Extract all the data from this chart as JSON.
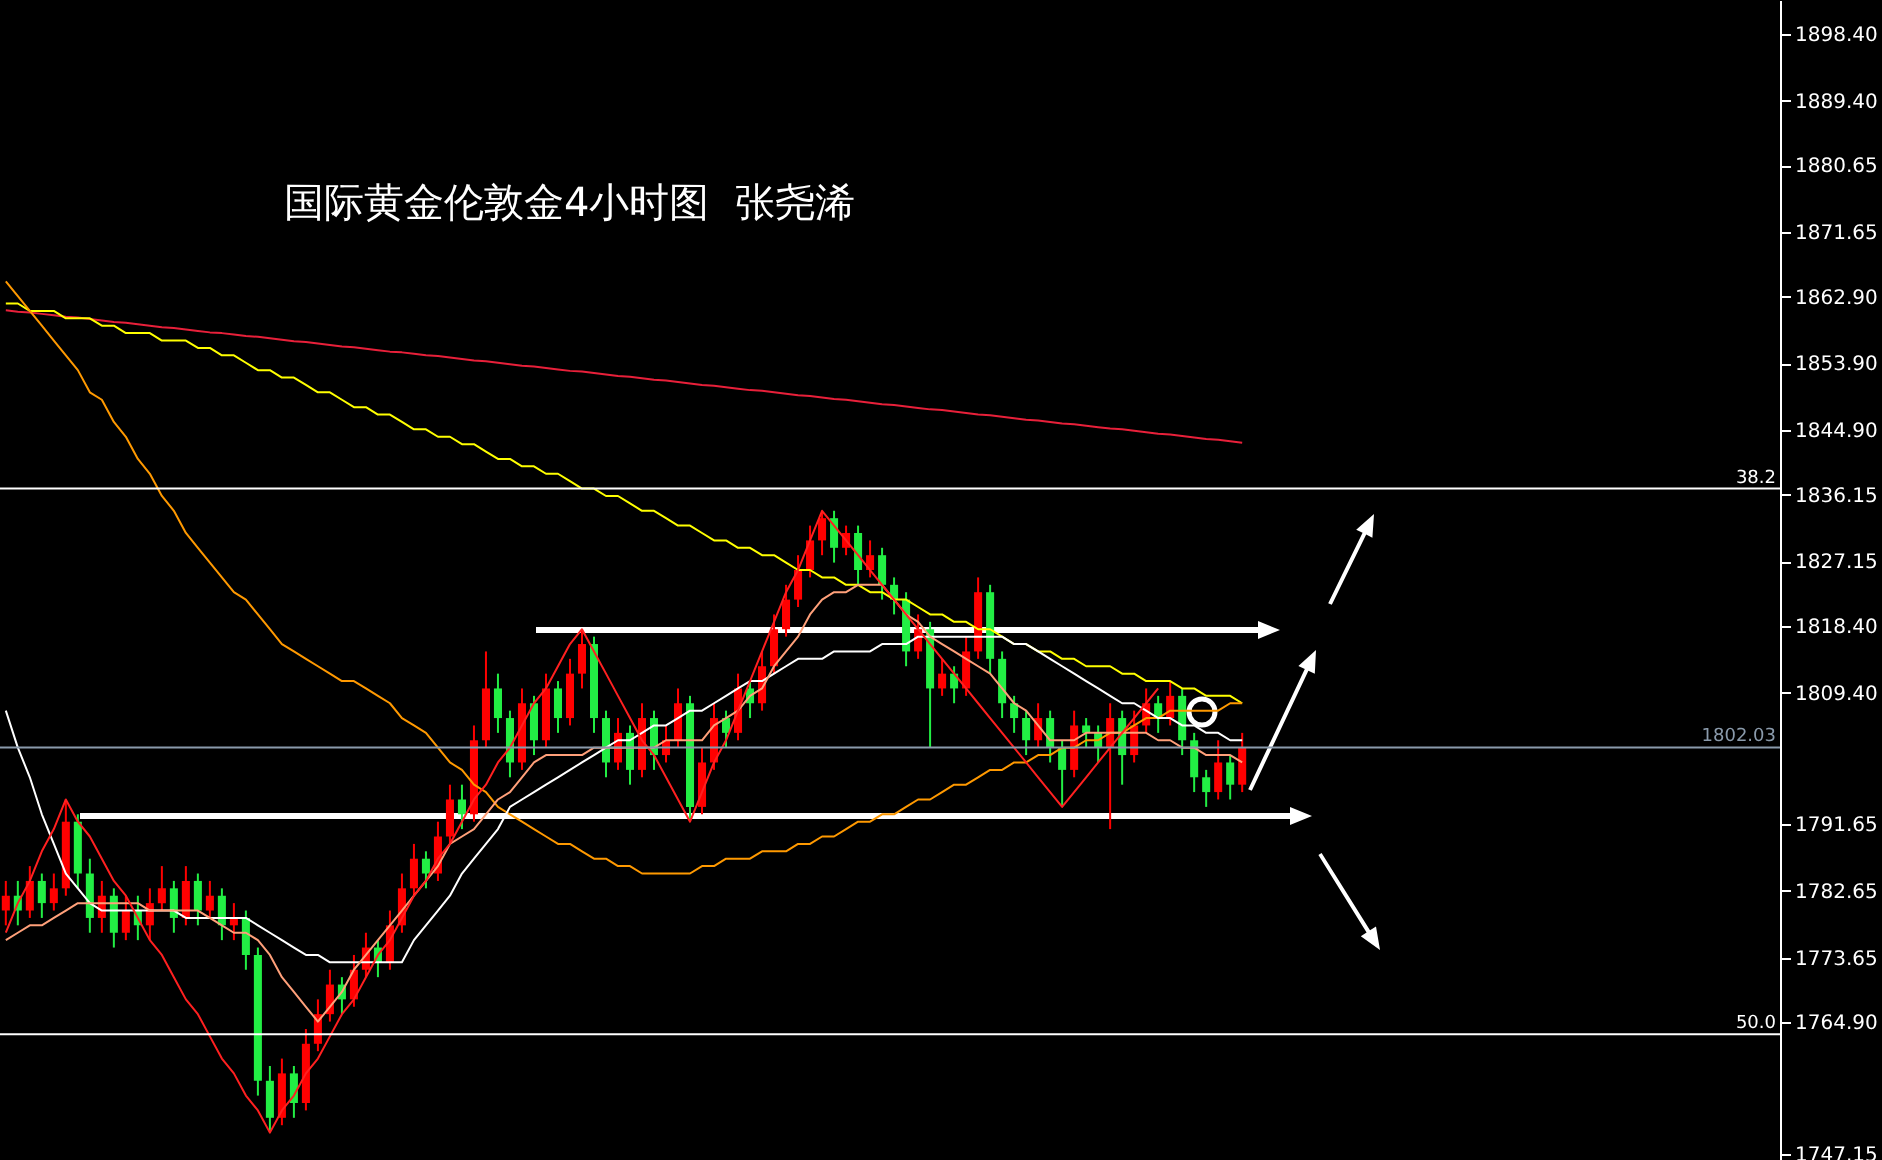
{
  "chart_data": {
    "type": "candlestick",
    "title": "国际黄金伦敦金4小时图  张尧浠",
    "categories": [
      null,
      null,
      null,
      null,
      null,
      null,
      null,
      null,
      null,
      null,
      null,
      null,
      null,
      null,
      null,
      null,
      null,
      null,
      null,
      null,
      null,
      null,
      null,
      null,
      null,
      null,
      null,
      null,
      null,
      null,
      null,
      null,
      null,
      null,
      null,
      null,
      null,
      null,
      null,
      null,
      null,
      null,
      null,
      null,
      null,
      null,
      null,
      null,
      null,
      null,
      null,
      null,
      null,
      null,
      null,
      null,
      null,
      null,
      null,
      null,
      null,
      null,
      null,
      null,
      null,
      null,
      null,
      null,
      null,
      null,
      null,
      null,
      null,
      null,
      null,
      null,
      null,
      null,
      null,
      null,
      null,
      null,
      null,
      null,
      null,
      null,
      null,
      null,
      null,
      null,
      null,
      null,
      null,
      null,
      null,
      null,
      null,
      null,
      null,
      null,
      null,
      null,
      null,
      null
    ],
    "ohlc": [
      [
        1780,
        1784,
        1778,
        1782
      ],
      [
        1782,
        1784,
        1778,
        1780
      ],
      [
        1780,
        1786,
        1779,
        1784
      ],
      [
        1784,
        1785,
        1779,
        1781
      ],
      [
        1781,
        1785,
        1780,
        1783
      ],
      [
        1783,
        1795,
        1782,
        1792
      ],
      [
        1792,
        1793,
        1783,
        1785
      ],
      [
        1785,
        1787,
        1777,
        1779
      ],
      [
        1779,
        1784,
        1777,
        1782
      ],
      [
        1782,
        1783,
        1775,
        1777
      ],
      [
        1777,
        1782,
        1776,
        1780
      ],
      [
        1780,
        1782,
        1776,
        1778
      ],
      [
        1778,
        1783,
        1776,
        1781
      ],
      [
        1781,
        1786,
        1780,
        1783
      ],
      [
        1783,
        1784,
        1777,
        1779
      ],
      [
        1779,
        1786,
        1778,
        1784
      ],
      [
        1784,
        1785,
        1778,
        1780
      ],
      [
        1780,
        1784,
        1779,
        1782
      ],
      [
        1782,
        1783,
        1776,
        1778
      ],
      [
        1778,
        1781,
        1776,
        1779
      ],
      [
        1779,
        1780,
        1772,
        1774
      ],
      [
        1774,
        1775,
        1755,
        1757
      ],
      [
        1757,
        1759,
        1750,
        1752
      ],
      [
        1752,
        1760,
        1751,
        1758
      ],
      [
        1758,
        1759,
        1752,
        1754
      ],
      [
        1754,
        1764,
        1753,
        1762
      ],
      [
        1762,
        1768,
        1761,
        1766
      ],
      [
        1766,
        1772,
        1765,
        1770
      ],
      [
        1770,
        1771,
        1766,
        1768
      ],
      [
        1768,
        1774,
        1767,
        1772
      ],
      [
        1772,
        1777,
        1771,
        1775
      ],
      [
        1775,
        1776,
        1771,
        1773
      ],
      [
        1773,
        1780,
        1772,
        1778
      ],
      [
        1778,
        1785,
        1777,
        1783
      ],
      [
        1783,
        1789,
        1782,
        1787
      ],
      [
        1787,
        1788,
        1783,
        1785
      ],
      [
        1785,
        1792,
        1784,
        1790
      ],
      [
        1790,
        1797,
        1789,
        1795
      ],
      [
        1795,
        1797,
        1791,
        1793
      ],
      [
        1793,
        1805,
        1792,
        1803
      ],
      [
        1803,
        1815,
        1802,
        1810
      ],
      [
        1810,
        1812,
        1804,
        1806
      ],
      [
        1806,
        1807,
        1798,
        1800
      ],
      [
        1800,
        1810,
        1799,
        1808
      ],
      [
        1808,
        1809,
        1801,
        1803
      ],
      [
        1803,
        1812,
        1802,
        1810
      ],
      [
        1810,
        1811,
        1804,
        1806
      ],
      [
        1806,
        1814,
        1805,
        1812
      ],
      [
        1812,
        1818,
        1810,
        1816
      ],
      [
        1816,
        1817,
        1804,
        1806
      ],
      [
        1806,
        1807,
        1798,
        1800
      ],
      [
        1800,
        1806,
        1799,
        1804
      ],
      [
        1804,
        1805,
        1797,
        1799
      ],
      [
        1799,
        1808,
        1798,
        1806
      ],
      [
        1806,
        1807,
        1799,
        1801
      ],
      [
        1801,
        1805,
        1800,
        1803
      ],
      [
        1803,
        1810,
        1802,
        1808
      ],
      [
        1808,
        1809,
        1792,
        1794
      ],
      [
        1794,
        1802,
        1793,
        1800
      ],
      [
        1800,
        1808,
        1799,
        1806
      ],
      [
        1806,
        1807,
        1802,
        1804
      ],
      [
        1804,
        1812,
        1803,
        1810
      ],
      [
        1810,
        1811,
        1806,
        1808
      ],
      [
        1808,
        1815,
        1807,
        1813
      ],
      [
        1813,
        1820,
        1812,
        1818
      ],
      [
        1818,
        1824,
        1817,
        1822
      ],
      [
        1822,
        1828,
        1821,
        1826
      ],
      [
        1826,
        1832,
        1825,
        1830
      ],
      [
        1830,
        1834,
        1828,
        1833
      ],
      [
        1833,
        1834,
        1827,
        1829
      ],
      [
        1829,
        1832,
        1828,
        1831
      ],
      [
        1831,
        1832,
        1824,
        1826
      ],
      [
        1826,
        1830,
        1825,
        1828
      ],
      [
        1828,
        1829,
        1822,
        1824
      ],
      [
        1824,
        1825,
        1820,
        1822
      ],
      [
        1822,
        1823,
        1813,
        1815
      ],
      [
        1815,
        1820,
        1814,
        1818
      ],
      [
        1818,
        1819,
        1802,
        1810
      ],
      [
        1810,
        1814,
        1809,
        1812
      ],
      [
        1812,
        1813,
        1808,
        1810
      ],
      [
        1810,
        1817,
        1809,
        1815
      ],
      [
        1815,
        1825,
        1814,
        1823
      ],
      [
        1823,
        1824,
        1812,
        1814
      ],
      [
        1814,
        1815,
        1806,
        1808
      ],
      [
        1808,
        1809,
        1804,
        1806
      ],
      [
        1806,
        1807,
        1801,
        1803
      ],
      [
        1803,
        1808,
        1802,
        1806
      ],
      [
        1806,
        1807,
        1800,
        1802
      ],
      [
        1802,
        1803,
        1794,
        1799
      ],
      [
        1799,
        1807,
        1798,
        1805
      ],
      [
        1805,
        1806,
        1802,
        1804
      ],
      [
        1804,
        1805,
        1800,
        1802
      ],
      [
        1802,
        1808,
        1791,
        1806
      ],
      [
        1806,
        1807,
        1797,
        1801
      ],
      [
        1801,
        1807,
        1800,
        1805
      ],
      [
        1805,
        1810,
        1804,
        1808
      ],
      [
        1808,
        1809,
        1804,
        1806
      ],
      [
        1806,
        1811,
        1805,
        1809
      ],
      [
        1809,
        1810,
        1801,
        1803
      ],
      [
        1803,
        1804,
        1796,
        1798
      ],
      [
        1798,
        1799,
        1794,
        1796
      ],
      [
        1796,
        1803,
        1795,
        1800
      ],
      [
        1800,
        1801,
        1795,
        1797
      ],
      [
        1797,
        1804,
        1796,
        1802
      ]
    ],
    "colors": [
      "#ff0000",
      "#22ee44",
      "#ff0000",
      "#22ee44",
      "#ff0000",
      "#ff0000",
      "#22ee44",
      "#22ee44",
      "#ff0000",
      "#22ee44",
      "#ff0000",
      "#22ee44",
      "#ff0000",
      "#ff0000",
      "#22ee44",
      "#ff0000",
      "#22ee44",
      "#ff0000",
      "#22ee44",
      "#ff0000",
      "#22ee44",
      "#22ee44",
      "#22ee44",
      "#ff0000",
      "#22ee44",
      "#ff0000",
      "#ff0000",
      "#ff0000",
      "#22ee44",
      "#ff0000",
      "#ff0000",
      "#22ee44",
      "#ff0000",
      "#ff0000",
      "#ff0000",
      "#22ee44",
      "#ff0000",
      "#ff0000",
      "#22ee44",
      "#ff0000",
      "#ff0000",
      "#22ee44",
      "#22ee44",
      "#ff0000",
      "#22ee44",
      "#ff0000",
      "#22ee44",
      "#ff0000",
      "#ff0000",
      "#22ee44",
      "#22ee44",
      "#ff0000",
      "#22ee44",
      "#ff0000",
      "#22ee44",
      "#ff0000",
      "#ff0000",
      "#22ee44",
      "#ff0000",
      "#ff0000",
      "#22ee44",
      "#ff0000",
      "#22ee44",
      "#ff0000",
      "#ff0000",
      "#ff0000",
      "#ff0000",
      "#ff0000",
      "#ff0000",
      "#22ee44",
      "#ff0000",
      "#22ee44",
      "#ff0000",
      "#22ee44",
      "#22ee44",
      "#22ee44",
      "#ff0000",
      "#22ee44",
      "#ff0000",
      "#22ee44",
      "#ff0000",
      "#ff0000",
      "#22ee44",
      "#22ee44",
      "#22ee44",
      "#22ee44",
      "#ff0000",
      "#22ee44",
      "#22ee44",
      "#ff0000",
      "#22ee44",
      "#22ee44",
      "#ff0000",
      "#22ee44",
      "#ff0000",
      "#ff0000",
      "#22ee44",
      "#ff0000",
      "#22ee44",
      "#22ee44",
      "#22ee44",
      "#ff0000",
      "#22ee44",
      "#ff0000"
    ],
    "series": [
      {
        "type": "line",
        "color": "#e8203a",
        "values": [
          1861.1,
          1860.9,
          1860.8,
          1860.6,
          1860.4,
          1860.2,
          1860.1,
          1859.9,
          1859.7,
          1859.5,
          1859.4,
          1859.2,
          1859.0,
          1858.8,
          1858.7,
          1858.5,
          1858.3,
          1858.1,
          1858.0,
          1857.8,
          1857.6,
          1857.5,
          1857.3,
          1857.1,
          1856.9,
          1856.8,
          1856.6,
          1856.4,
          1856.2,
          1856.1,
          1855.9,
          1855.7,
          1855.5,
          1855.4,
          1855.2,
          1855.0,
          1854.9,
          1854.7,
          1854.5,
          1854.3,
          1854.2,
          1854.0,
          1853.8,
          1853.6,
          1853.5,
          1853.3,
          1853.1,
          1852.9,
          1852.8,
          1852.6,
          1852.4,
          1852.2,
          1852.1,
          1851.9,
          1851.7,
          1851.6,
          1851.4,
          1851.2,
          1851.0,
          1850.9,
          1850.7,
          1850.5,
          1850.3,
          1850.2,
          1850.0,
          1849.8,
          1849.6,
          1849.5,
          1849.3,
          1849.1,
          1849.0,
          1848.8,
          1848.6,
          1848.4,
          1848.3,
          1848.1,
          1847.9,
          1847.7,
          1847.6,
          1847.4,
          1847.2,
          1847.0,
          1846.9,
          1846.7,
          1846.5,
          1846.3,
          1846.2,
          1846.0,
          1845.8,
          1845.7,
          1845.5,
          1845.3,
          1845.1,
          1845.0,
          1844.8,
          1844.6,
          1844.4,
          1844.3,
          1844.1,
          1843.9,
          1843.7,
          1843.6,
          1843.4,
          1843.2
        ]
      },
      {
        "type": "line",
        "color": "#ffff00",
        "values": [
          1862,
          1862,
          1861,
          1861,
          1861,
          1860,
          1860,
          1860,
          1859,
          1859,
          1858,
          1858,
          1858,
          1857,
          1857,
          1857,
          1856,
          1856,
          1855,
          1855,
          1854,
          1853,
          1853,
          1852,
          1852,
          1851,
          1850,
          1850,
          1849,
          1848,
          1848,
          1847,
          1847,
          1846,
          1845,
          1845,
          1844,
          1844,
          1843,
          1843,
          1842,
          1841,
          1841,
          1840,
          1840,
          1839,
          1839,
          1838,
          1837,
          1837,
          1836,
          1836,
          1835,
          1834,
          1834,
          1833,
          1832,
          1832,
          1831,
          1830,
          1830,
          1829,
          1829,
          1828,
          1828,
          1827,
          1826,
          1826,
          1825,
          1825,
          1824,
          1824,
          1823,
          1823,
          1822,
          1822,
          1821,
          1820,
          1820,
          1819,
          1819,
          1818,
          1818,
          1817,
          1816,
          1816,
          1815,
          1815,
          1814,
          1814,
          1813,
          1813,
          1813,
          1812,
          1812,
          1811,
          1811,
          1811,
          1810,
          1810,
          1809,
          1809,
          1809,
          1808
        ]
      },
      {
        "type": "line",
        "color": "#ff9900",
        "values": [
          1865,
          1863,
          1861,
          1859,
          1857,
          1855,
          1853,
          1850,
          1849,
          1846,
          1844,
          1841,
          1839,
          1836,
          1834,
          1831,
          1829,
          1827,
          1825,
          1823,
          1822,
          1820,
          1818,
          1816,
          1815,
          1814,
          1813,
          1812,
          1811,
          1811,
          1810,
          1809,
          1808,
          1806,
          1805,
          1804,
          1802,
          1800,
          1799,
          1797,
          1796,
          1794,
          1793,
          1792,
          1791,
          1790,
          1789,
          1789,
          1788,
          1787,
          1787,
          1786,
          1786,
          1785,
          1785,
          1785,
          1785,
          1785,
          1786,
          1786,
          1787,
          1787,
          1787,
          1788,
          1788,
          1788,
          1789,
          1789,
          1790,
          1790,
          1791,
          1792,
          1792,
          1793,
          1793,
          1794,
          1795,
          1795,
          1796,
          1797,
          1797,
          1798,
          1799,
          1799,
          1800,
          1800,
          1801,
          1801,
          1802,
          1802,
          1803,
          1803,
          1804,
          1804,
          1805,
          1806,
          1806,
          1807,
          1807,
          1807,
          1807,
          1807,
          1808,
          1808
        ]
      },
      {
        "type": "line",
        "color": "#ffffff",
        "values": [
          1807,
          1802,
          1798,
          1793,
          1789,
          1785,
          1783,
          1781,
          1780,
          1780,
          1780,
          1780,
          1780,
          1780,
          1780,
          1779,
          1779,
          1779,
          1779,
          1779,
          1779,
          1778,
          1777,
          1776,
          1775,
          1774,
          1774,
          1773,
          1773,
          1773,
          1773,
          1773,
          1773,
          1773,
          1776,
          1778,
          1780,
          1782,
          1785,
          1787,
          1789,
          1791,
          1794,
          1795,
          1796,
          1797,
          1798,
          1799,
          1800,
          1801,
          1802,
          1803,
          1803,
          1804,
          1805,
          1805,
          1806,
          1807,
          1807,
          1808,
          1809,
          1810,
          1811,
          1811,
          1812,
          1813,
          1814,
          1814,
          1814,
          1815,
          1815,
          1815,
          1815,
          1816,
          1816,
          1816,
          1817,
          1817,
          1817,
          1817,
          1817,
          1817,
          1817,
          1817,
          1816,
          1816,
          1815,
          1814,
          1813,
          1812,
          1811,
          1810,
          1809,
          1808,
          1808,
          1807,
          1806,
          1806,
          1805,
          1805,
          1804,
          1804,
          1803,
          1803
        ]
      },
      {
        "type": "line",
        "color": "#ffa07a",
        "values": [
          1776,
          1777,
          1778,
          1778,
          1779,
          1780,
          1781,
          1781,
          1781,
          1781,
          1781,
          1781,
          1780,
          1780,
          1780,
          1780,
          1780,
          1779,
          1778,
          1777,
          1777,
          1776,
          1774,
          1771,
          1769,
          1767,
          1765,
          1767,
          1769,
          1772,
          1774,
          1776,
          1778,
          1780,
          1782,
          1784,
          1786,
          1789,
          1790,
          1791,
          1793,
          1795,
          1796,
          1798,
          1800,
          1801,
          1801,
          1801,
          1801,
          1802,
          1802,
          1802,
          1802,
          1802,
          1802,
          1803,
          1803,
          1803,
          1803,
          1805,
          1806,
          1807,
          1809,
          1810,
          1813,
          1815,
          1817,
          1820,
          1822,
          1823,
          1823,
          1824,
          1824,
          1824,
          1822,
          1820,
          1819,
          1817,
          1816,
          1815,
          1814,
          1813,
          1812,
          1810,
          1808,
          1807,
          1805,
          1803,
          1803,
          1803,
          1804,
          1804,
          1804,
          1804,
          1804,
          1804,
          1803,
          1803,
          1802,
          1802,
          1801,
          1801,
          1801,
          1800
        ]
      },
      {
        "type": "line",
        "color": "#ff2020",
        "values": [
          1777,
          1781,
          1784,
          1788,
          1791,
          1795,
          1792,
          1790,
          1787,
          1784,
          1782,
          1779,
          1776,
          1774,
          1771,
          1768,
          1766,
          1763,
          1760,
          1758,
          1755,
          1753,
          1750,
          1753,
          1755,
          1758,
          1760,
          1763,
          1766,
          1768,
          1771,
          1774,
          1776,
          1779,
          1782,
          1784,
          1787,
          1789,
          1792,
          1795,
          1797,
          1800,
          1802,
          1805,
          1808,
          1810,
          1813,
          1816,
          1818,
          1815,
          1812,
          1809,
          1806,
          1803,
          1801,
          1798,
          1795,
          1792,
          1796,
          1800,
          1803,
          1807,
          1811,
          1815,
          1819,
          1823,
          1826,
          1830,
          1834,
          1832,
          1830,
          1828,
          1826,
          1824,
          1822,
          1820,
          1818,
          1816,
          1814,
          1812,
          1810,
          1808,
          1806,
          1804,
          1802,
          1800,
          1798,
          1796,
          1794,
          1796,
          1798,
          1800,
          1802,
          1804,
          1806,
          1808,
          1810,
          null,
          null,
          null,
          null,
          null,
          null,
          null
        ]
      }
    ],
    "ylim": [
      1746.3,
      1903.0
    ],
    "yticks": [
      {
        "value": 1747.15,
        "label": "1747.15"
      },
      {
        "value": 1764.9,
        "label": "1764.90"
      },
      {
        "value": 1773.65,
        "label": "1773.65"
      },
      {
        "value": 1782.65,
        "label": "1782.65"
      },
      {
        "value": 1791.65,
        "label": "1791.65"
      },
      {
        "value": 1809.4,
        "label": "1809.40"
      },
      {
        "value": 1818.4,
        "label": "1818.40"
      },
      {
        "value": 1827.15,
        "label": "1827.15"
      },
      {
        "value": 1836.15,
        "label": "1836.15"
      },
      {
        "value": 1844.9,
        "label": "1844.90"
      },
      {
        "value": 1853.9,
        "label": "1853.90"
      },
      {
        "value": 1862.9,
        "label": "1862.90"
      },
      {
        "value": 1871.65,
        "label": "1871.65"
      },
      {
        "value": 1880.65,
        "label": "1880.65"
      },
      {
        "value": 1889.4,
        "label": "1889.40"
      },
      {
        "value": 1898.4,
        "label": "1898.40"
      }
    ],
    "tick_labels": "y",
    "grid": false,
    "annotations": [
      {
        "text": "38.2",
        "y": 1837.0
      },
      {
        "text": "50.0",
        "y": 1763.3
      }
    ],
    "ref_lines": [
      {
        "axis": "y",
        "value": 1837.0,
        "color": "#ffffff"
      },
      {
        "axis": "y",
        "value": 1763.3,
        "color": "#ffffff"
      },
      {
        "axis": "y",
        "value": 1802.03,
        "label": "1802.03",
        "color": "#8a9aab"
      }
    ]
  }
}
